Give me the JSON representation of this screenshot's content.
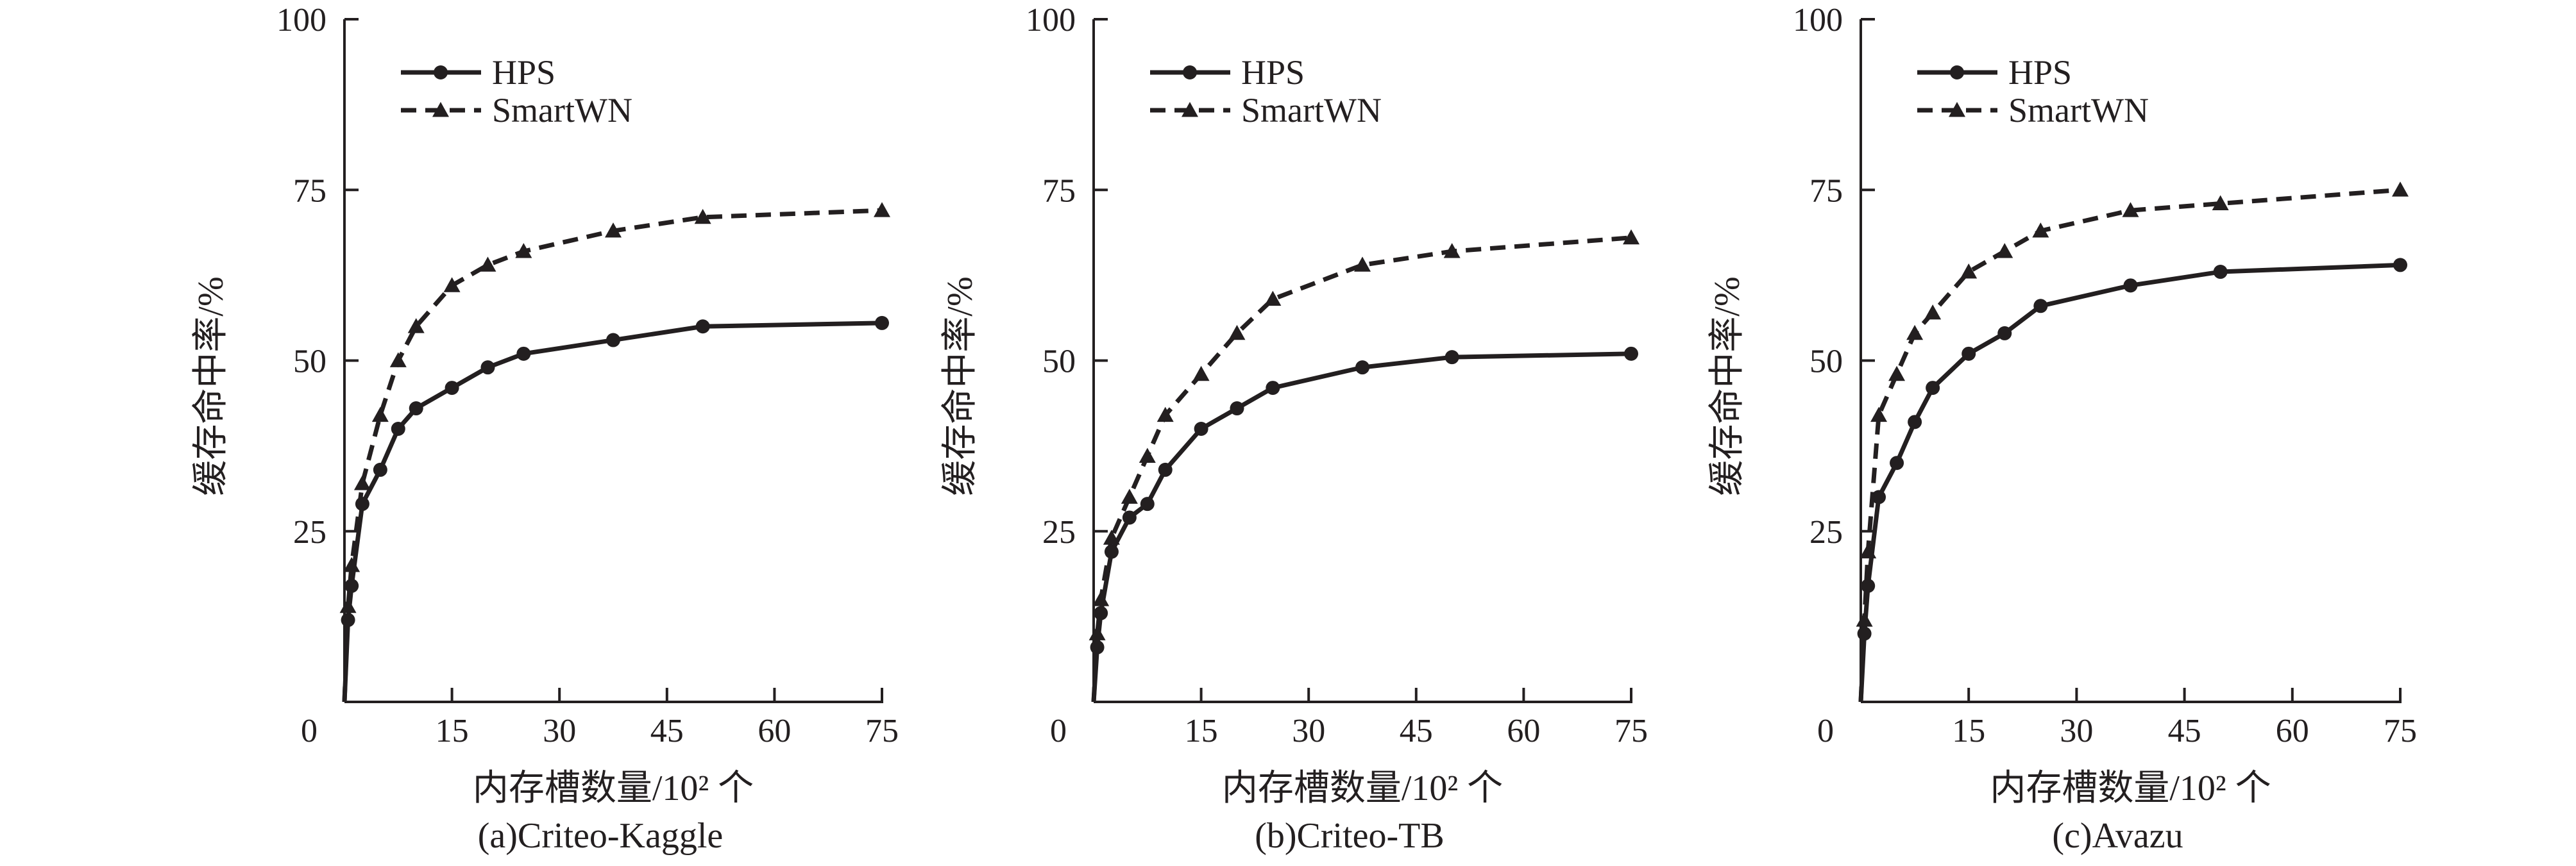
{
  "chart_data": [
    {
      "type": "line",
      "caption": "(a)Criteo-Kaggle",
      "xlabel": "内存槽数量/10² 个",
      "ylabel": "缓存命中率/%",
      "xlim": [
        0,
        75
      ],
      "ylim": [
        0,
        100
      ],
      "xticks": [
        0,
        15,
        30,
        45,
        60,
        75
      ],
      "yticks": [
        25,
        50,
        75,
        100
      ],
      "origin_label": "0",
      "legend": "top-left",
      "grid": false,
      "series": [
        {
          "name": "HPS",
          "style": "solid",
          "marker": "circle",
          "x": [
            0,
            0.5,
            1,
            2.5,
            5,
            7.5,
            10,
            15,
            20,
            25,
            37.5,
            50,
            75
          ],
          "y": [
            0,
            12,
            17,
            29,
            34,
            40,
            43,
            46,
            49,
            51,
            53,
            55,
            55.5
          ]
        },
        {
          "name": "SmartWN",
          "style": "dashed",
          "marker": "triangle",
          "x": [
            0,
            0.5,
            1,
            2.5,
            5,
            7.5,
            10,
            15,
            20,
            25,
            37.5,
            50,
            75
          ],
          "y": [
            0,
            14,
            20,
            32,
            42,
            50,
            55,
            61,
            64,
            66,
            69,
            71,
            72
          ]
        }
      ]
    },
    {
      "type": "line",
      "caption": "(b)Criteo-TB",
      "xlabel": "内存槽数量/10² 个",
      "ylabel": "缓存命中率/%",
      "xlim": [
        0,
        75
      ],
      "ylim": [
        0,
        100
      ],
      "xticks": [
        0,
        15,
        30,
        45,
        60,
        75
      ],
      "yticks": [
        25,
        50,
        75,
        100
      ],
      "origin_label": "0",
      "legend": "top-left",
      "grid": false,
      "series": [
        {
          "name": "HPS",
          "style": "solid",
          "marker": "circle",
          "x": [
            0,
            0.5,
            1,
            2.5,
            5,
            7.5,
            10,
            15,
            20,
            25,
            37.5,
            50,
            75
          ],
          "y": [
            0,
            8,
            13,
            22,
            27,
            29,
            34,
            40,
            43,
            46,
            49,
            50.5,
            51
          ]
        },
        {
          "name": "SmartWN",
          "style": "dashed",
          "marker": "triangle",
          "x": [
            0,
            0.5,
            1,
            2.5,
            5,
            7.5,
            10,
            15,
            20,
            25,
            37.5,
            50,
            75
          ],
          "y": [
            0,
            10,
            15,
            24,
            30,
            36,
            42,
            48,
            54,
            59,
            64,
            66,
            68
          ]
        }
      ]
    },
    {
      "type": "line",
      "caption": "(c)Avazu",
      "xlabel": "内存槽数量/10² 个",
      "ylabel": "缓存命中率/%",
      "xlim": [
        0,
        75
      ],
      "ylim": [
        0,
        100
      ],
      "xticks": [
        0,
        15,
        30,
        45,
        60,
        75
      ],
      "yticks": [
        25,
        50,
        75,
        100
      ],
      "origin_label": "0",
      "legend": "top-left",
      "grid": false,
      "series": [
        {
          "name": "HPS",
          "style": "solid",
          "marker": "circle",
          "x": [
            0,
            0.5,
            1,
            2.5,
            5,
            7.5,
            10,
            15,
            20,
            25,
            37.5,
            50,
            75
          ],
          "y": [
            0,
            10,
            17,
            30,
            35,
            41,
            46,
            51,
            54,
            58,
            61,
            63,
            64
          ]
        },
        {
          "name": "SmartWN",
          "style": "dashed",
          "marker": "triangle",
          "x": [
            0,
            0.5,
            1,
            2.5,
            5,
            7.5,
            10,
            15,
            20,
            25,
            37.5,
            50,
            75
          ],
          "y": [
            0,
            12,
            22,
            42,
            48,
            54,
            57,
            63,
            66,
            69,
            72,
            73,
            75
          ]
        }
      ]
    }
  ]
}
